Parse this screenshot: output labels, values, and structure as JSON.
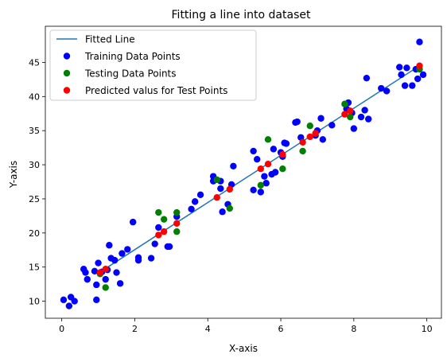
{
  "chart_data": {
    "type": "scatter",
    "title": "Fitting a line into dataset",
    "xlabel": "X-axis",
    "ylabel": "Y-axis",
    "xlim": [
      -0.45,
      10.4
    ],
    "ylim": [
      7.5,
      50.3
    ],
    "xticks": [
      0,
      2,
      4,
      6,
      8,
      10
    ],
    "yticks": [
      10,
      15,
      20,
      25,
      30,
      35,
      40,
      45
    ],
    "grid": false,
    "legend_position": "top-left",
    "fitted_line": {
      "name": "Fitted Line",
      "color": "#1f77b4",
      "x": [
        1.0,
        9.8
      ],
      "y": [
        14.1,
        44.5
      ]
    },
    "series": [
      {
        "name": "Training Data Points",
        "color": "#0000ff",
        "points": [
          [
            0.05,
            10.2
          ],
          [
            0.2,
            9.3
          ],
          [
            0.25,
            10.6
          ],
          [
            0.35,
            10.0
          ],
          [
            0.6,
            14.7
          ],
          [
            0.65,
            14.2
          ],
          [
            0.7,
            13.2
          ],
          [
            0.9,
            14.4
          ],
          [
            0.95,
            10.2
          ],
          [
            0.95,
            12.4
          ],
          [
            1.0,
            15.6
          ],
          [
            1.1,
            14.3
          ],
          [
            1.2,
            13.2
          ],
          [
            1.25,
            14.6
          ],
          [
            1.3,
            18.2
          ],
          [
            1.35,
            16.3
          ],
          [
            1.45,
            16.0
          ],
          [
            1.5,
            14.2
          ],
          [
            1.6,
            12.6
          ],
          [
            1.65,
            17.0
          ],
          [
            1.8,
            17.6
          ],
          [
            1.95,
            21.6
          ],
          [
            2.1,
            16.4
          ],
          [
            2.1,
            16.0
          ],
          [
            2.45,
            16.3
          ],
          [
            2.55,
            18.4
          ],
          [
            2.65,
            20.8
          ],
          [
            2.9,
            18.0
          ],
          [
            2.95,
            18.0
          ],
          [
            3.15,
            22.4
          ],
          [
            3.55,
            23.5
          ],
          [
            3.65,
            24.6
          ],
          [
            3.8,
            25.6
          ],
          [
            4.15,
            27.6
          ],
          [
            4.15,
            28.3
          ],
          [
            4.35,
            27.6
          ],
          [
            4.35,
            26.5
          ],
          [
            4.4,
            23.1
          ],
          [
            4.55,
            24.2
          ],
          [
            4.65,
            27.1
          ],
          [
            4.7,
            29.8
          ],
          [
            5.25,
            32.0
          ],
          [
            5.25,
            26.3
          ],
          [
            5.35,
            30.8
          ],
          [
            5.45,
            26.0
          ],
          [
            5.55,
            28.3
          ],
          [
            5.6,
            27.3
          ],
          [
            5.75,
            28.6
          ],
          [
            5.8,
            32.3
          ],
          [
            5.85,
            28.9
          ],
          [
            6.0,
            31.8
          ],
          [
            6.05,
            31.2
          ],
          [
            6.1,
            33.2
          ],
          [
            6.15,
            33.1
          ],
          [
            6.4,
            36.2
          ],
          [
            6.45,
            36.3
          ],
          [
            6.55,
            34.0
          ],
          [
            6.95,
            34.3
          ],
          [
            7.0,
            35.0
          ],
          [
            7.1,
            36.8
          ],
          [
            7.15,
            33.7
          ],
          [
            7.4,
            35.8
          ],
          [
            7.8,
            38.2
          ],
          [
            7.85,
            39.1
          ],
          [
            7.95,
            37.6
          ],
          [
            8.0,
            35.3
          ],
          [
            8.2,
            37.0
          ],
          [
            8.3,
            38.0
          ],
          [
            8.35,
            42.7
          ],
          [
            8.4,
            36.7
          ],
          [
            8.75,
            41.2
          ],
          [
            8.9,
            40.8
          ],
          [
            9.25,
            44.3
          ],
          [
            9.3,
            43.2
          ],
          [
            9.4,
            41.6
          ],
          [
            9.45,
            44.2
          ],
          [
            9.6,
            41.6
          ],
          [
            9.75,
            42.6
          ],
          [
            9.8,
            48.0
          ],
          [
            9.9,
            43.2
          ],
          [
            9.7,
            44.0
          ]
        ]
      },
      {
        "name": "Testing Data Points",
        "color": "#008000",
        "points": [
          [
            1.05,
            14.0
          ],
          [
            1.2,
            12.0
          ],
          [
            2.65,
            23.0
          ],
          [
            2.8,
            22.0
          ],
          [
            3.15,
            23.0
          ],
          [
            3.15,
            20.2
          ],
          [
            4.25,
            27.8
          ],
          [
            4.6,
            23.6
          ],
          [
            5.45,
            27.0
          ],
          [
            5.65,
            33.7
          ],
          [
            6.05,
            29.4
          ],
          [
            6.6,
            32.0
          ],
          [
            6.8,
            35.7
          ],
          [
            7.75,
            38.9
          ],
          [
            7.9,
            37.0
          ],
          [
            9.8,
            44.0
          ]
        ]
      },
      {
        "name": "Predicted valus for Test Points",
        "color": "#ff0000",
        "points": [
          [
            1.05,
            14.2
          ],
          [
            1.2,
            14.7
          ],
          [
            2.65,
            19.7
          ],
          [
            2.8,
            20.2
          ],
          [
            3.15,
            21.4
          ],
          [
            4.25,
            25.2
          ],
          [
            4.6,
            26.4
          ],
          [
            5.45,
            29.4
          ],
          [
            5.65,
            30.1
          ],
          [
            6.05,
            31.5
          ],
          [
            6.6,
            33.3
          ],
          [
            6.8,
            34.1
          ],
          [
            6.95,
            34.6
          ],
          [
            7.75,
            37.4
          ],
          [
            7.9,
            37.9
          ],
          [
            9.8,
            44.5
          ]
        ]
      }
    ]
  }
}
